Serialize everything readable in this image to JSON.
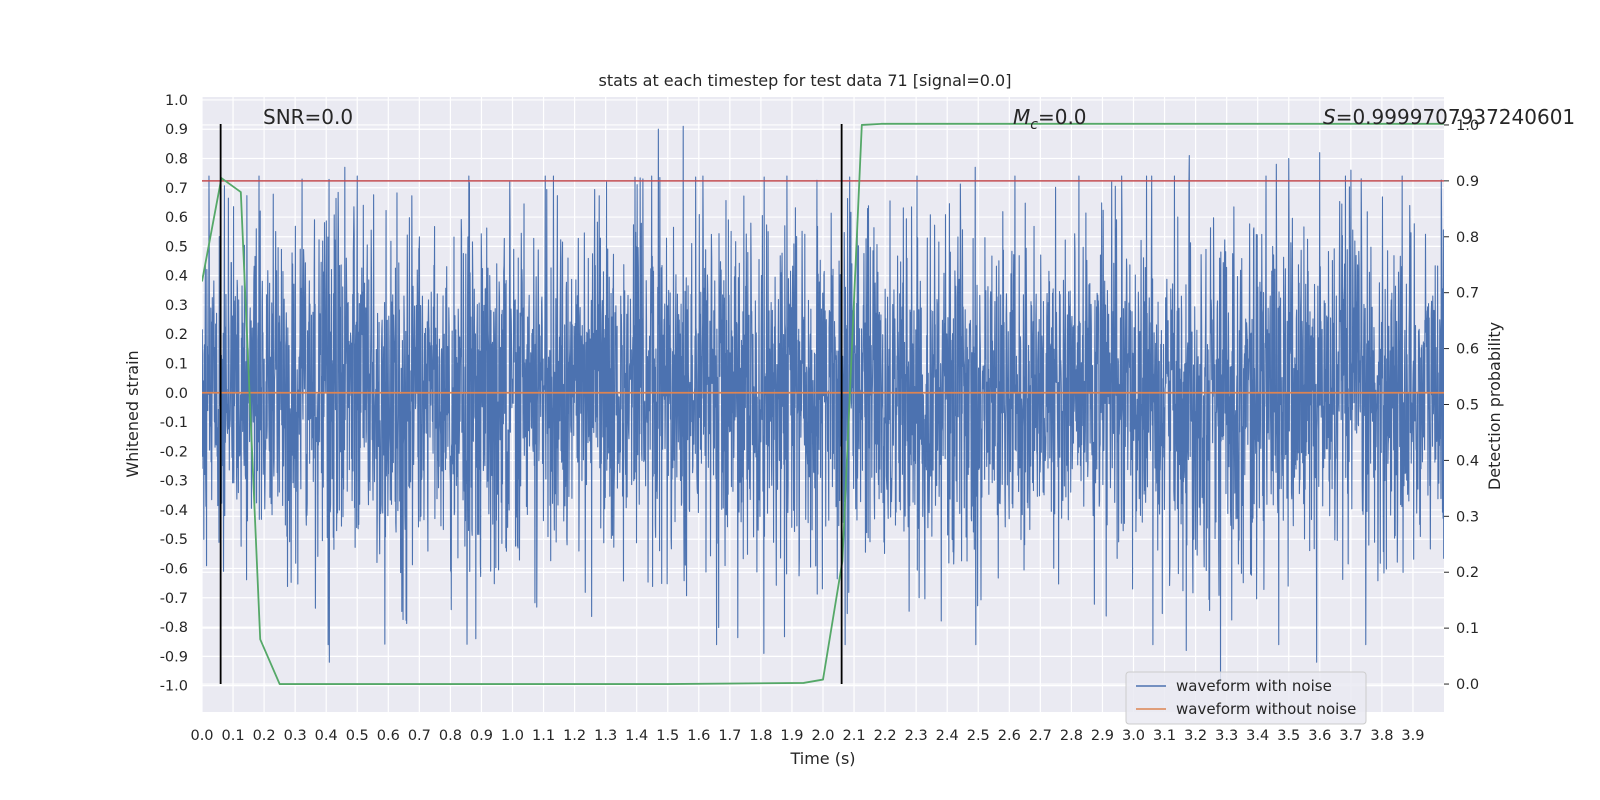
{
  "chart_data": {
    "type": "line",
    "title": "stats at each timestep for test data 71 [signal=0.0]",
    "xlabel": "Time (s)",
    "ylabel": "Whitened strain",
    "y2label": "Detection probability",
    "xlim": [
      0.0,
      4.0
    ],
    "ylim": [
      -1.09,
      1.01
    ],
    "y2lim": [
      -0.05,
      1.05
    ],
    "x_ticks": [
      "0.0",
      "0.1",
      "0.2",
      "0.3",
      "0.4",
      "0.5",
      "0.6",
      "0.7",
      "0.8",
      "0.9",
      "1.0",
      "1.1",
      "1.2",
      "1.3",
      "1.4",
      "1.5",
      "1.6",
      "1.7",
      "1.8",
      "1.9",
      "2.0",
      "2.1",
      "2.2",
      "2.3",
      "2.4",
      "2.5",
      "2.6",
      "2.7",
      "2.8",
      "2.9",
      "3.0",
      "3.1",
      "3.2",
      "3.3",
      "3.4",
      "3.5",
      "3.6",
      "3.7",
      "3.8",
      "3.9"
    ],
    "y_ticks": [
      "1.0",
      "0.9",
      "0.8",
      "0.7",
      "0.6",
      "0.5",
      "0.4",
      "0.3",
      "0.2",
      "0.1",
      "0.0",
      "-0.1",
      "-0.2",
      "-0.3",
      "-0.4",
      "-0.5",
      "-0.6",
      "-0.7",
      "-0.8",
      "-0.9",
      "-1.0"
    ],
    "y2_ticks": [
      "1.0",
      "0.9",
      "0.8",
      "0.7",
      "0.6",
      "0.5",
      "0.4",
      "0.3",
      "0.2",
      "0.1",
      "0.0"
    ],
    "annotations": {
      "snr": "SNR=0.0",
      "mc_symbol": "M",
      "mc_sub": "c",
      "mc_value": "=0.0",
      "s_symbol": "S",
      "s_value": "=0.9999707937240601"
    },
    "threshold": {
      "axis": "right",
      "value": 0.9,
      "color": "#c44e52"
    },
    "vlines": {
      "x": [
        0.06,
        2.06
      ],
      "color": "#000000"
    },
    "series": [
      {
        "name": "waveform with noise",
        "axis": "left",
        "color": "#4c72b0",
        "kind": "noise",
        "sample_rate": 1024,
        "approx_std": 0.29,
        "notable_peaks": [
          {
            "t": 1.47,
            "v": 0.9
          },
          {
            "t": 1.55,
            "v": 0.91
          },
          {
            "t": 3.28,
            "v": -0.99
          },
          {
            "t": 3.02,
            "v": 0.05
          },
          {
            "t": 0.46,
            "v": 0.77
          },
          {
            "t": 2.49,
            "v": 0.77
          },
          {
            "t": 3.18,
            "v": 0.81
          },
          {
            "t": 3.6,
            "v": 0.82
          },
          {
            "t": 3.5,
            "v": 0.8
          },
          {
            "t": 3.46,
            "v": 0.78
          },
          {
            "t": 3.7,
            "v": 0.76
          },
          {
            "t": 0.41,
            "v": -0.92
          },
          {
            "t": 1.81,
            "v": -0.89
          },
          {
            "t": 3.17,
            "v": -0.88
          },
          {
            "t": 3.59,
            "v": -0.92
          }
        ]
      },
      {
        "name": "waveform without noise",
        "axis": "left",
        "color": "#dd8452",
        "t": [
          0.0,
          4.0
        ],
        "v": [
          0.0,
          0.0
        ]
      },
      {
        "name": "detection probability",
        "axis": "right",
        "color": "#55a868",
        "t": [
          0.0,
          0.0625,
          0.125,
          0.1875,
          0.25,
          1.5,
          1.9375,
          2.0,
          2.0625,
          2.125,
          2.1875,
          4.0
        ],
        "v": [
          0.72,
          0.905,
          0.88,
          0.08,
          0.0,
          0.0,
          0.002,
          0.008,
          0.22,
          1.0,
          1.002,
          1.002
        ]
      }
    ],
    "legend": {
      "position": "lower-right",
      "entries": [
        {
          "label": "waveform with noise",
          "color": "#4c72b0"
        },
        {
          "label": "waveform without noise",
          "color": "#dd8452"
        }
      ]
    },
    "grid": true
  }
}
